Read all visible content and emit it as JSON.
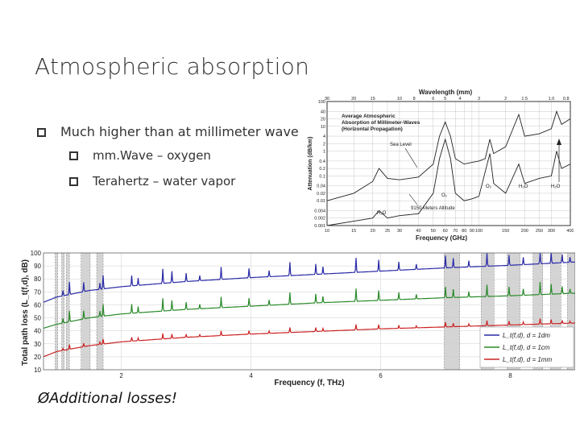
{
  "slide": {
    "title": "Atmospheric absorption",
    "bullets": [
      {
        "text": "Much higher than at millimeter wave",
        "level": 1
      },
      {
        "text": "mm.Wave – oxygen",
        "level": 2
      },
      {
        "text": "Terahertz – water vapor",
        "level": 2
      }
    ],
    "footer_note": "Additional losses!",
    "footer_marker": "Ø"
  },
  "chart_data": [
    {
      "type": "line",
      "title": "Average Atmospheric Absorption of Millimeter-Waves (Horizontal Propagation)",
      "title_lines": [
        "Average Atmospheric",
        "Absorption of Millimeter-Waves",
        "(Horizontal Propagation)"
      ],
      "xlabel": "Frequency (GHz)",
      "ylabel": "Attenuation (dB/km)",
      "top_axis_label": "Wavelength (mm)",
      "x_scale": "log",
      "y_scale": "log",
      "xlim": [
        10,
        400
      ],
      "ylim": [
        0.001,
        100
      ],
      "x_ticks": [
        10,
        15,
        20,
        25,
        30,
        40,
        50,
        60,
        70,
        80,
        90,
        100,
        150,
        200,
        250,
        300,
        400
      ],
      "y_ticks": [
        "100",
        "40",
        "20",
        "10",
        "4",
        "2",
        "1",
        "0.4",
        "0.2",
        "0.1",
        "0.04",
        "0.02",
        "0.01",
        "0.004",
        "0.002",
        "0.001"
      ],
      "top_ticks": [
        "30",
        "20",
        "15",
        "10",
        "8",
        "6",
        "5",
        "4",
        "3",
        "2",
        "1.5",
        "1.0",
        "0.8"
      ],
      "annotations": [
        "Sea Level",
        "9150 Meters Altitude",
        "H₂O",
        "O₂",
        "O₂",
        "H₂O",
        "H₂O"
      ],
      "grid": true,
      "series": [
        {
          "name": "Sea Level",
          "points": [
            [
              10,
              0.01
            ],
            [
              15,
              0.02
            ],
            [
              20,
              0.06
            ],
            [
              22,
              0.2
            ],
            [
              25,
              0.08
            ],
            [
              30,
              0.07
            ],
            [
              40,
              0.09
            ],
            [
              50,
              0.3
            ],
            [
              55,
              4
            ],
            [
              60,
              15
            ],
            [
              65,
              4
            ],
            [
              70,
              0.5
            ],
            [
              80,
              0.3
            ],
            [
              90,
              0.35
            ],
            [
              100,
              0.4
            ],
            [
              110,
              0.5
            ],
            [
              118,
              3
            ],
            [
              125,
              0.8
            ],
            [
              150,
              1.5
            ],
            [
              183,
              30
            ],
            [
              200,
              4
            ],
            [
              250,
              5
            ],
            [
              300,
              8
            ],
            [
              325,
              40
            ],
            [
              350,
              12
            ],
            [
              400,
              20
            ]
          ]
        },
        {
          "name": "9150 Meters Altitude",
          "points": [
            [
              10,
              0.001
            ],
            [
              15,
              0.0015
            ],
            [
              20,
              0.002
            ],
            [
              22,
              0.004
            ],
            [
              25,
              0.002
            ],
            [
              30,
              0.0025
            ],
            [
              40,
              0.003
            ],
            [
              50,
              0.02
            ],
            [
              55,
              0.5
            ],
            [
              60,
              3
            ],
            [
              65,
              0.5
            ],
            [
              70,
              0.02
            ],
            [
              80,
              0.01
            ],
            [
              90,
              0.012
            ],
            [
              100,
              0.015
            ],
            [
              118,
              0.8
            ],
            [
              125,
              0.05
            ],
            [
              150,
              0.02
            ],
            [
              183,
              0.3
            ],
            [
              200,
              0.05
            ],
            [
              250,
              0.08
            ],
            [
              300,
              0.1
            ],
            [
              325,
              1
            ],
            [
              350,
              0.2
            ],
            [
              400,
              0.3
            ]
          ]
        }
      ]
    },
    {
      "type": "line",
      "xlabel": "Frequency (f, THz)",
      "ylabel": "Total path loss (L_t(f,d), dB)",
      "xlim": [
        0.8,
        9.0
      ],
      "ylim": [
        10,
        100
      ],
      "x_ticks": [
        2,
        4,
        6,
        8
      ],
      "y_ticks": [
        10,
        20,
        30,
        40,
        50,
        60,
        70,
        80,
        90,
        100
      ],
      "grid": true,
      "legend_position": "bottom-right",
      "legend": [
        "L_t(f,d), d = 1dm",
        "L_t(f,d), d = 1cm",
        "L_t(f,d), d = 1mm"
      ],
      "shaded_bands_thz": [
        [
          0.98,
          1.02
        ],
        [
          1.08,
          1.12
        ],
        [
          1.15,
          1.2
        ],
        [
          1.38,
          1.52
        ],
        [
          1.62,
          1.72
        ],
        [
          6.98,
          7.22
        ],
        [
          7.55,
          7.75
        ],
        [
          7.95,
          8.15
        ],
        [
          8.35,
          8.5
        ],
        [
          8.62,
          8.78
        ],
        [
          8.88,
          9.0
        ]
      ],
      "series": [
        {
          "name": "L_t(f,d), d = 1dm",
          "color": "#2a2aa8",
          "points": [
            [
              0.8,
              62
            ],
            [
              1.0,
              66
            ],
            [
              1.5,
              71
            ],
            [
              2.0,
              74
            ],
            [
              3.0,
              78
            ],
            [
              4.0,
              81
            ],
            [
              5.0,
              83.5
            ],
            [
              6.0,
              86
            ],
            [
              7.0,
              88.5
            ],
            [
              8.0,
              90.5
            ],
            [
              9.0,
              93
            ]
          ]
        },
        {
          "name": "L_t(f,d), d = 1cm",
          "color": "#2a8a2a",
          "points": [
            [
              0.8,
              42
            ],
            [
              1.0,
              45
            ],
            [
              1.5,
              50
            ],
            [
              2.0,
              53
            ],
            [
              3.0,
              56.5
            ],
            [
              4.0,
              59
            ],
            [
              5.0,
              61.5
            ],
            [
              6.0,
              63.5
            ],
            [
              7.0,
              65.5
            ],
            [
              8.0,
              67
            ],
            [
              9.0,
              69
            ]
          ]
        },
        {
          "name": "L_t(f,d), d = 1mm",
          "color": "#cc2222",
          "points": [
            [
              0.8,
              20
            ],
            [
              1.0,
              24
            ],
            [
              1.5,
              28.5
            ],
            [
              2.0,
              31.5
            ],
            [
              3.0,
              35
            ],
            [
              4.0,
              37.5
            ],
            [
              5.0,
              39.5
            ],
            [
              6.0,
              41.5
            ],
            [
              7.0,
              43
            ],
            [
              8.0,
              44.5
            ],
            [
              9.0,
              46
            ]
          ]
        }
      ]
    }
  ]
}
